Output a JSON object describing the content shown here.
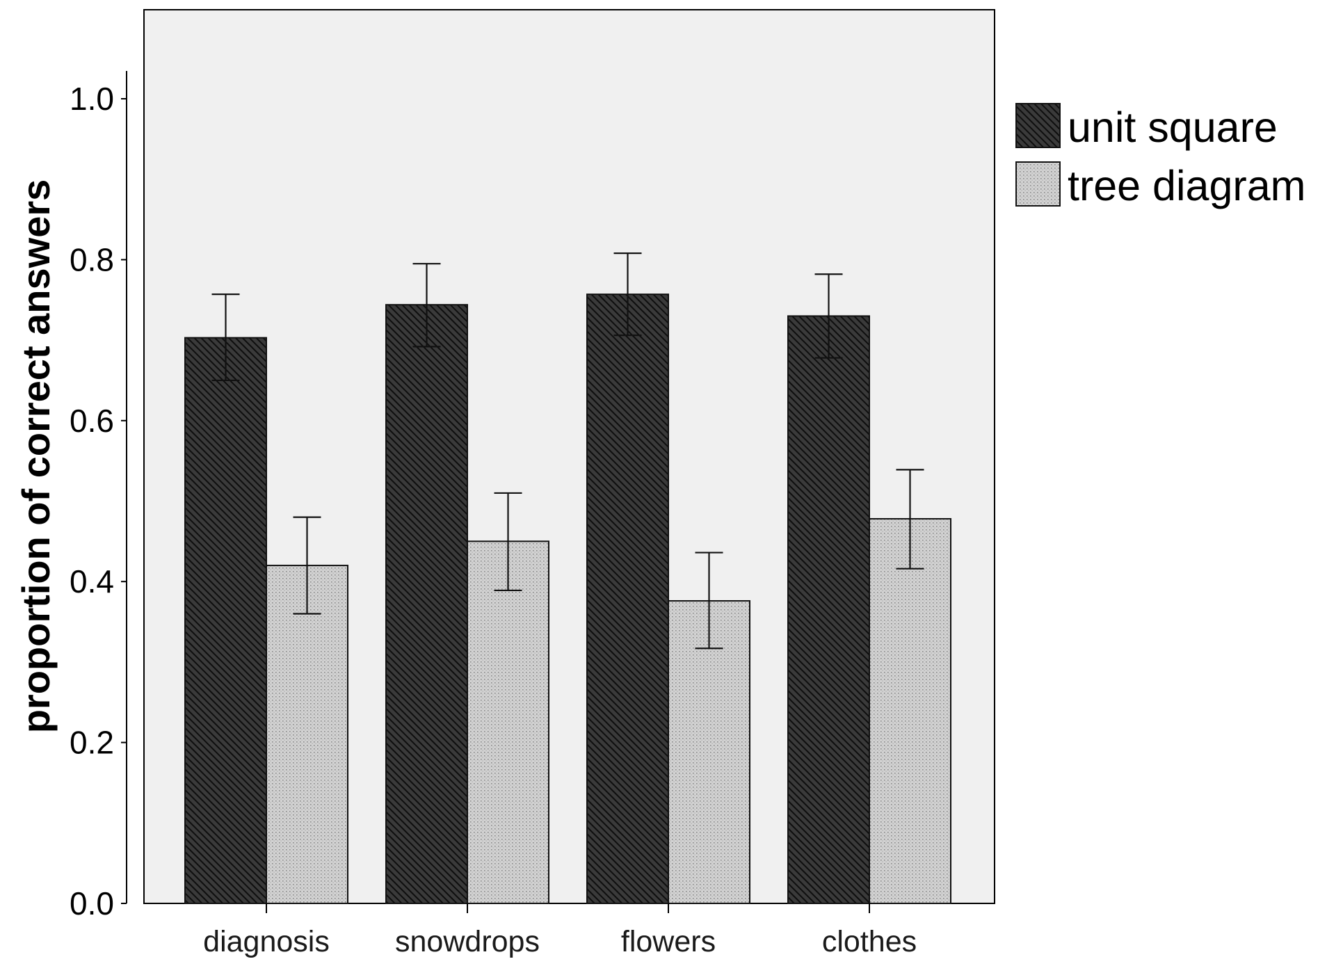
{
  "chart_data": {
    "type": "bar",
    "ylabel": "proportion of correct answers",
    "xlabel": "",
    "ylim": [
      0,
      1.1
    ],
    "yticks": [
      0.0,
      0.2,
      0.4,
      0.6,
      0.8,
      1.0
    ],
    "ytick_labels": [
      "0.0",
      "0.2",
      "0.4",
      "0.6",
      "0.8",
      "1.0"
    ],
    "categories": [
      "diagnosis",
      "snowdrops",
      "flowers",
      "clothes"
    ],
    "series": [
      {
        "name": "unit square",
        "values": [
          0.703,
          0.744,
          0.757,
          0.73
        ],
        "error_low": [
          0.65,
          0.692,
          0.706,
          0.678
        ],
        "error_high": [
          0.757,
          0.795,
          0.808,
          0.782
        ],
        "color": "#2b2b2b",
        "pattern": "diagonal-hatch"
      },
      {
        "name": "tree diagram",
        "values": [
          0.42,
          0.45,
          0.376,
          0.478
        ],
        "error_low": [
          0.36,
          0.389,
          0.317,
          0.416
        ],
        "error_high": [
          0.48,
          0.51,
          0.436,
          0.539
        ],
        "color": "#cfcfcf",
        "pattern": "dots"
      }
    ],
    "grid": false,
    "legend_position": "right",
    "plot_background": "#f0f0f0"
  }
}
